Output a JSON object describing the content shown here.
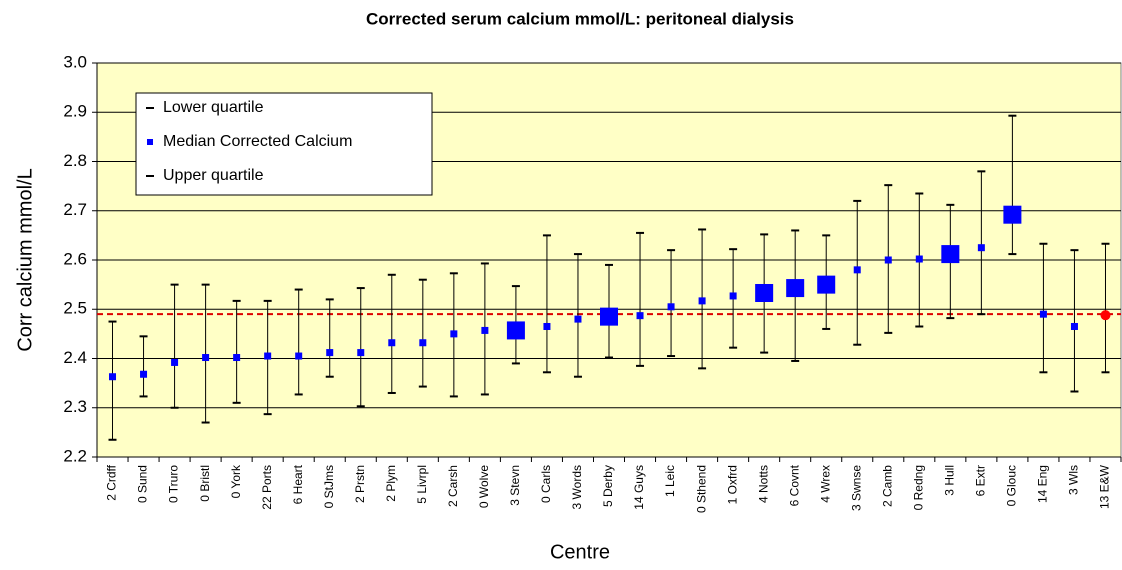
{
  "chart_data": {
    "type": "errorbar",
    "title": "Corrected serum calcium mmol/L: peritoneal dialysis",
    "x_label": "Centre",
    "y_label": "Corr calcium mmol/L",
    "categories": [
      "2 Crdff",
      "0 Sund",
      "0 Truro",
      "0 Bristl",
      "0 York",
      "22 Ports",
      "6 Heart",
      "0 StJms",
      "2 Prstn",
      "2 Plym",
      "5 Livrpl",
      "2 Carsh",
      "0 Wolve",
      "3 Stevn",
      "0 Carls",
      "3 Words",
      "5 Derby",
      "14 Guys",
      "1 Leic",
      "0 Sthend",
      "1 Oxfrd",
      "4 Notts",
      "6 Covnt",
      "4 Wrex",
      "3 Swnse",
      "2 Camb",
      "0 Redng",
      "3 Hull",
      "6 Extr",
      "0 Glouc",
      "14 Eng",
      "3 Wls",
      "13 E&W"
    ],
    "series": [
      {
        "name": "Lower quartile",
        "color": "#000000",
        "values": [
          2.235,
          2.323,
          2.3,
          2.27,
          2.31,
          2.287,
          2.327,
          2.363,
          2.303,
          2.33,
          2.343,
          2.323,
          2.327,
          2.39,
          2.372,
          2.363,
          2.402,
          2.385,
          2.405,
          2.38,
          2.422,
          2.412,
          2.395,
          2.46,
          2.428,
          2.452,
          2.465,
          2.482,
          2.49,
          2.612,
          2.372,
          2.333,
          2.372
        ]
      },
      {
        "name": "Median Corrected Calcium",
        "color": "#0000ff",
        "highlight_color": "#ff0000",
        "values": [
          2.363,
          2.368,
          2.392,
          2.402,
          2.402,
          2.405,
          2.405,
          2.412,
          2.412,
          2.432,
          2.432,
          2.45,
          2.457,
          2.457,
          2.465,
          2.48,
          2.485,
          2.487,
          2.505,
          2.517,
          2.527,
          2.533,
          2.543,
          2.55,
          2.58,
          2.6,
          2.602,
          2.612,
          2.625,
          2.692,
          2.49,
          2.465,
          2.488
        ],
        "marker_styles": [
          "small",
          "small",
          "small",
          "small",
          "small",
          "small",
          "small",
          "small",
          "small",
          "small",
          "small",
          "small",
          "small",
          "large",
          "small",
          "small",
          "large",
          "small",
          "small",
          "small",
          "small",
          "large",
          "large",
          "large",
          "small",
          "small",
          "small",
          "large",
          "small",
          "large",
          "small",
          "small",
          "circle"
        ]
      },
      {
        "name": "Upper quartile",
        "color": "#000000",
        "values": [
          2.475,
          2.445,
          2.55,
          2.55,
          2.517,
          2.517,
          2.54,
          2.52,
          2.543,
          2.57,
          2.56,
          2.573,
          2.593,
          2.547,
          2.65,
          2.612,
          2.59,
          2.655,
          2.62,
          2.662,
          2.622,
          2.652,
          2.66,
          2.65,
          2.72,
          2.752,
          2.735,
          2.712,
          2.78,
          2.893,
          2.633,
          2.62,
          2.633
        ]
      }
    ],
    "reference_line": {
      "value": 2.49,
      "color": "#dd0000"
    },
    "ylim": [
      2.2,
      3.0
    ],
    "yticks": [
      2.2,
      2.3,
      2.4,
      2.5,
      2.6,
      2.7,
      2.8,
      2.9,
      {
        "value": 3.0,
        "label": "3.0"
      }
    ],
    "grid": true,
    "legend": "top-left",
    "background": "#ffffc6"
  }
}
